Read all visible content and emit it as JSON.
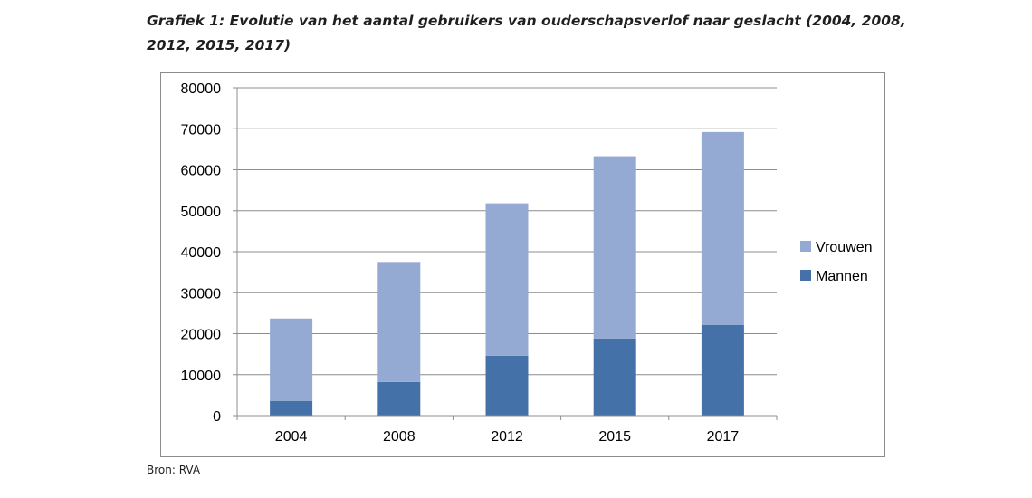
{
  "title": "Grafiek 1: Evolutie van het aantal gebruikers van ouderschapsverlof naar geslacht (2004, 2008, 2012, 2015, 2017)",
  "source": "Bron: RVA",
  "chart_data": {
    "type": "bar",
    "stacked": true,
    "categories": [
      "2004",
      "2008",
      "2012",
      "2015",
      "2017"
    ],
    "series": [
      {
        "name": "Mannen",
        "values": [
          3600,
          8200,
          14600,
          18800,
          22100
        ],
        "color": "#4472a8"
      },
      {
        "name": "Vrouwen",
        "values": [
          20100,
          29300,
          37200,
          44500,
          47100
        ],
        "color": "#95aad3"
      }
    ],
    "ylim": [
      0,
      80000
    ],
    "yticks": [
      0,
      10000,
      20000,
      30000,
      40000,
      50000,
      60000,
      70000,
      80000
    ],
    "grid": true,
    "legend_position": "right",
    "legend_order": [
      "Vrouwen",
      "Mannen"
    ]
  }
}
